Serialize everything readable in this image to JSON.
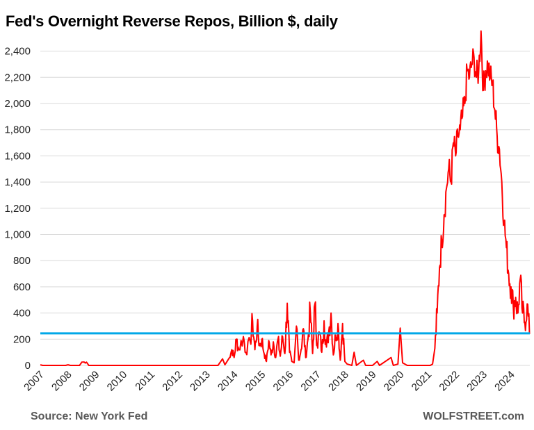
{
  "chart_data": {
    "type": "line",
    "title": "Fed's Overnight Reverse Repos, Billion $, daily",
    "source": "Source: New York Fed",
    "brand": "WOLFSTREET.com",
    "ylim": [
      0,
      2600
    ],
    "yticks": [
      0,
      200,
      400,
      600,
      800,
      1000,
      1200,
      1400,
      1600,
      1800,
      2000,
      2200,
      2400
    ],
    "ytick_labels": [
      "0",
      "200",
      "400",
      "600",
      "800",
      "1,000",
      "1,200",
      "1,400",
      "1,600",
      "1,800",
      "2,000",
      "2,200",
      "2,400"
    ],
    "xticks": [
      "2007",
      "2008",
      "2009",
      "2010",
      "2011",
      "2012",
      "2013",
      "2014",
      "2015",
      "2016",
      "2017",
      "2018",
      "2019",
      "2020",
      "2021",
      "2022",
      "2023",
      "2024"
    ],
    "grid": true,
    "series_color": "#ff0000",
    "reference_line": {
      "value": 245,
      "color": "#00a8e8"
    },
    "series": [
      {
        "points": [
          [
            "2007-01",
            5
          ],
          [
            "2007-02",
            0
          ],
          [
            "2007-12",
            0
          ],
          [
            "2008-01",
            5
          ],
          [
            "2008-02",
            0
          ],
          [
            "2008-06",
            0
          ],
          [
            "2008-07",
            25
          ],
          [
            "2008-09",
            25
          ],
          [
            "2008-10",
            0
          ],
          [
            "2013-06",
            0
          ],
          [
            "2013-08",
            50
          ],
          [
            "2013-09",
            5
          ],
          [
            "2013-11",
            60
          ],
          [
            "2013-12",
            120
          ],
          [
            "2014-01",
            60
          ],
          [
            "2014-02",
            200
          ],
          [
            "2014-03",
            120
          ],
          [
            "2014-05",
            220
          ],
          [
            "2014-06",
            100
          ],
          [
            "2014-08",
            180
          ],
          [
            "2014-09",
            340
          ],
          [
            "2014-10",
            120
          ],
          [
            "2014-11",
            300
          ],
          [
            "2014-12",
            150
          ],
          [
            "2015-01",
            200
          ],
          [
            "2015-02",
            90
          ],
          [
            "2015-03",
            30
          ],
          [
            "2015-04",
            190
          ],
          [
            "2015-05",
            80
          ],
          [
            "2015-06",
            180
          ],
          [
            "2015-07",
            60
          ],
          [
            "2015-08",
            200
          ],
          [
            "2015-09",
            70
          ],
          [
            "2015-10",
            220
          ],
          [
            "2015-11",
            90
          ],
          [
            "2015-12",
            475
          ],
          [
            "2016-01",
            100
          ],
          [
            "2016-02",
            30
          ],
          [
            "2016-03",
            20
          ],
          [
            "2016-04",
            300
          ],
          [
            "2016-05",
            40
          ],
          [
            "2016-06",
            120
          ],
          [
            "2016-07",
            280
          ],
          [
            "2016-08",
            60
          ],
          [
            "2016-09",
            200
          ],
          [
            "2016-10",
            420
          ],
          [
            "2016-11",
            90
          ],
          [
            "2016-12",
            470
          ],
          [
            "2017-01",
            150
          ],
          [
            "2017-02",
            250
          ],
          [
            "2017-03",
            100
          ],
          [
            "2017-04",
            340
          ],
          [
            "2017-05",
            140
          ],
          [
            "2017-06",
            260
          ],
          [
            "2017-07",
            400
          ],
          [
            "2017-08",
            80
          ],
          [
            "2017-09",
            230
          ],
          [
            "2017-10",
            320
          ],
          [
            "2017-11",
            40
          ],
          [
            "2017-12",
            320
          ],
          [
            "2018-01",
            30
          ],
          [
            "2018-02",
            10
          ],
          [
            "2018-04",
            0
          ],
          [
            "2018-05",
            100
          ],
          [
            "2018-06",
            0
          ],
          [
            "2018-09",
            40
          ],
          [
            "2018-10",
            0
          ],
          [
            "2019-01",
            0
          ],
          [
            "2019-03",
            30
          ],
          [
            "2019-04",
            0
          ],
          [
            "2019-09",
            60
          ],
          [
            "2019-10",
            0
          ],
          [
            "2019-12",
            10
          ],
          [
            "2020-01",
            285
          ],
          [
            "2020-02",
            20
          ],
          [
            "2020-04",
            0
          ],
          [
            "2021-02",
            0
          ],
          [
            "2021-03",
            10
          ],
          [
            "2021-04",
            130
          ],
          [
            "2021-05",
            400
          ],
          [
            "2021-06",
            750
          ],
          [
            "2021-07",
            950
          ],
          [
            "2021-08",
            1150
          ],
          [
            "2021-09",
            1350
          ],
          [
            "2021-10",
            1500
          ],
          [
            "2021-11",
            1400
          ],
          [
            "2021-12",
            1700
          ],
          [
            "2022-01",
            1600
          ],
          [
            "2022-02",
            1750
          ],
          [
            "2022-03",
            1800
          ],
          [
            "2022-04",
            1900
          ],
          [
            "2022-05",
            2000
          ],
          [
            "2022-06",
            2250
          ],
          [
            "2022-07",
            2200
          ],
          [
            "2022-08",
            2300
          ],
          [
            "2022-09",
            2350
          ],
          [
            "2022-10",
            2200
          ],
          [
            "2022-11",
            2250
          ],
          [
            "2022-12",
            2554
          ],
          [
            "2023-01",
            2100
          ],
          [
            "2023-02",
            2250
          ],
          [
            "2023-03",
            2300
          ],
          [
            "2023-04",
            2200
          ],
          [
            "2023-05",
            2150
          ],
          [
            "2023-06",
            1950
          ],
          [
            "2023-07",
            1750
          ],
          [
            "2023-08",
            1650
          ],
          [
            "2023-09",
            1400
          ],
          [
            "2023-10",
            1100
          ],
          [
            "2023-11",
            900
          ],
          [
            "2023-12",
            700
          ],
          [
            "2024-01",
            600
          ],
          [
            "2024-02",
            450
          ],
          [
            "2024-03",
            520
          ],
          [
            "2024-04",
            400
          ],
          [
            "2024-05",
            660
          ],
          [
            "2024-06",
            400
          ],
          [
            "2024-07",
            330
          ],
          [
            "2024-08",
            470
          ],
          [
            "2024-09",
            240
          ]
        ]
      }
    ]
  }
}
